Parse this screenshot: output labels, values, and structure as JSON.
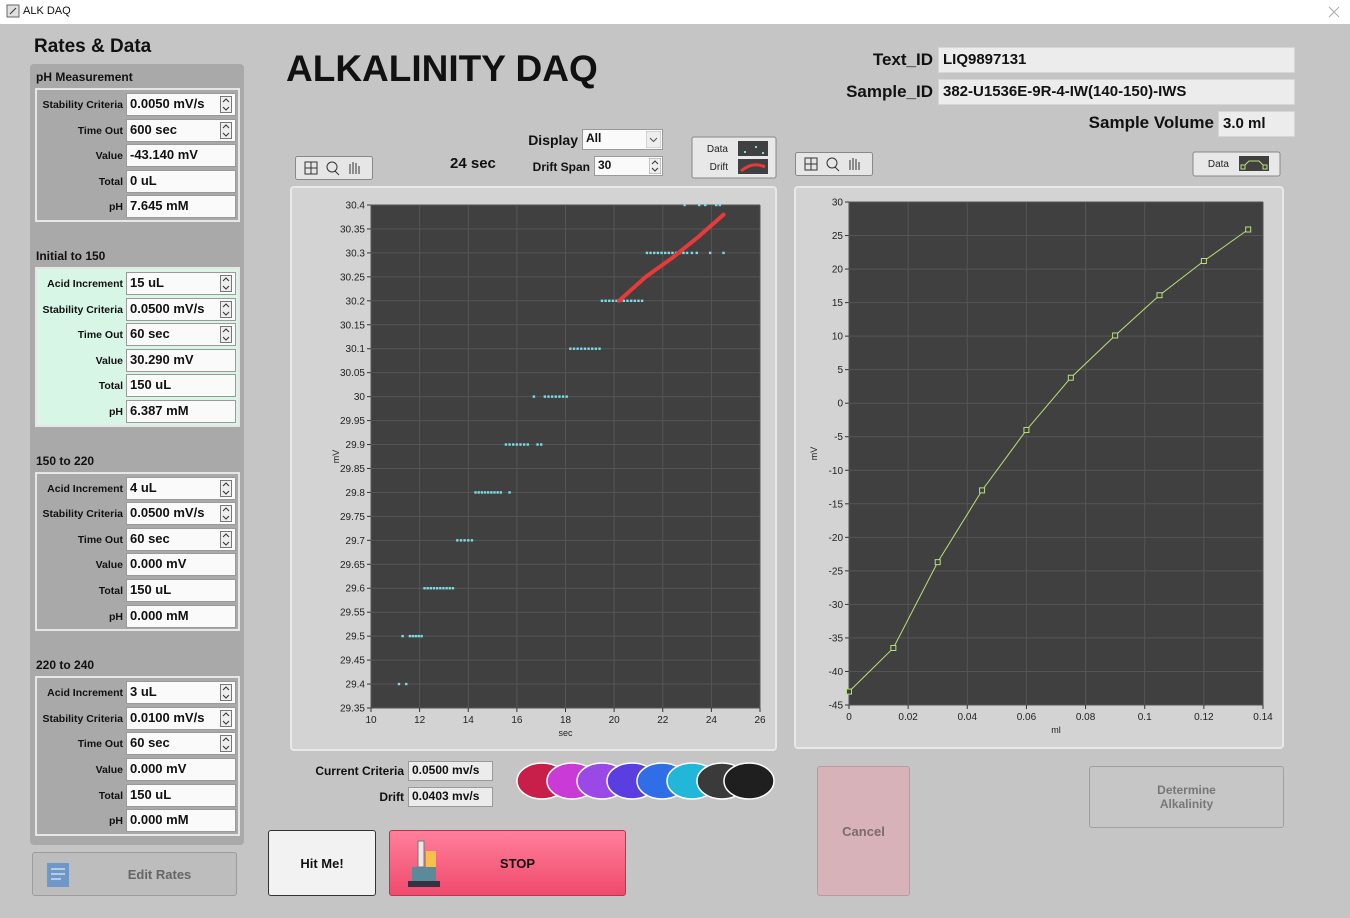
{
  "window": {
    "title": "ALK DAQ"
  },
  "sidebar": {
    "title": "Rates & Data",
    "sections": [
      {
        "title": "pH Measurement",
        "fields": [
          {
            "label": "Stability Criteria",
            "value": "0.0050 mV/s",
            "spinner": true
          },
          {
            "label": "Time Out",
            "value": "600 sec",
            "spinner": true
          },
          {
            "label": "Value",
            "value": "-43.140 mV",
            "spinner": false
          },
          {
            "label": "Total",
            "value": "0 uL",
            "spinner": false
          },
          {
            "label": "pH",
            "value": "7.645 mM",
            "spinner": false
          }
        ]
      },
      {
        "title": "Initial to 150",
        "highlight": true,
        "fields": [
          {
            "label": "Acid Increment",
            "value": "15 uL",
            "spinner": true
          },
          {
            "label": "Stability Criteria",
            "value": "0.0500 mV/s",
            "spinner": true
          },
          {
            "label": "Time Out",
            "value": "60 sec",
            "spinner": true
          },
          {
            "label": "Value",
            "value": "30.290 mV",
            "spinner": false
          },
          {
            "label": "Total",
            "value": "150 uL",
            "spinner": false
          },
          {
            "label": "pH",
            "value": "6.387 mM",
            "spinner": false
          }
        ]
      },
      {
        "title": "150 to 220",
        "fields": [
          {
            "label": "Acid Increment",
            "value": "4 uL",
            "spinner": true
          },
          {
            "label": "Stability Criteria",
            "value": "0.0500 mV/s",
            "spinner": true
          },
          {
            "label": "Time Out",
            "value": "60 sec",
            "spinner": true
          },
          {
            "label": "Value",
            "value": "0.000 mV",
            "spinner": false
          },
          {
            "label": "Total",
            "value": "150 uL",
            "spinner": false
          },
          {
            "label": "pH",
            "value": "0.000 mM",
            "spinner": false
          }
        ]
      },
      {
        "title": "220 to 240",
        "fields": [
          {
            "label": "Acid Increment",
            "value": "3 uL",
            "spinner": true
          },
          {
            "label": "Stability Criteria",
            "value": "0.0100 mV/s",
            "spinner": true
          },
          {
            "label": "Time Out",
            "value": "60 sec",
            "spinner": true
          },
          {
            "label": "Value",
            "value": "0.000 mV",
            "spinner": false
          },
          {
            "label": "Total",
            "value": "150 uL",
            "spinner": false
          },
          {
            "label": "pH",
            "value": "0.000 mM",
            "spinner": false
          }
        ]
      }
    ],
    "edit_button": "Edit Rates"
  },
  "header": {
    "title": "ALKALINITY DAQ",
    "elapsed": "24 sec",
    "display": {
      "label": "Display",
      "value": "All"
    },
    "drift_span": {
      "label": "Drift Span",
      "value": "30"
    }
  },
  "sample": {
    "text_id": {
      "label": "Text_ID",
      "value": "LIQ9897131"
    },
    "sample_id": {
      "label": "Sample_ID",
      "value": "382-U1536E-9R-4-IW(140-150)-IWS"
    },
    "volume": {
      "label": "Sample Volume",
      "value": "3.0 ml"
    }
  },
  "status": {
    "current_criteria": {
      "label": "Current Criteria",
      "value": "0.0500 mv/s"
    },
    "drift": {
      "label": "Drift",
      "value": "0.0403 mv/s"
    }
  },
  "buttons": {
    "hit": "Hit Me!",
    "stop": "STOP",
    "cancel": "Cancel",
    "determine": "Determine Alkalinity"
  },
  "chart_data": [
    {
      "type": "scatter",
      "xlabel": "sec",
      "ylabel": "mV",
      "xlim": [
        10,
        26
      ],
      "xticks": [
        10,
        12,
        14,
        16,
        18,
        20,
        22,
        24,
        26
      ],
      "ylim": [
        29.35,
        30.4
      ],
      "yticks": [
        29.35,
        29.4,
        29.45,
        29.5,
        29.55,
        29.6,
        29.65,
        29.7,
        29.75,
        29.8,
        29.85,
        29.9,
        29.95,
        30,
        30.05,
        30.1,
        30.15,
        30.2,
        30.25,
        30.3,
        30.35,
        30.4
      ],
      "grid": true,
      "series": [
        {
          "name": "Data",
          "color": "#7fdbe8",
          "mode": "markers",
          "x": [
            11.15,
            11.45,
            11.3,
            11.6,
            11.72,
            11.84,
            11.96,
            12.08,
            12.2,
            12.33,
            12.46,
            12.59,
            12.72,
            12.85,
            12.98,
            13.11,
            13.24,
            13.37,
            13.55,
            13.7,
            13.85,
            14.0,
            14.15,
            14.3,
            14.43,
            14.56,
            14.69,
            14.82,
            14.95,
            15.08,
            15.21,
            15.34,
            15.7,
            15.55,
            15.7,
            15.85,
            16.0,
            16.15,
            16.3,
            16.45,
            16.85,
            17.0,
            16.7,
            17.15,
            17.3,
            17.45,
            17.6,
            17.75,
            17.9,
            18.05,
            18.2,
            18.35,
            18.5,
            18.65,
            18.8,
            18.95,
            19.1,
            19.25,
            19.4,
            19.5,
            19.65,
            19.8,
            19.95,
            20.1,
            20.25,
            20.4,
            20.55,
            20.7,
            20.85,
            21.0,
            21.15,
            21.35,
            21.5,
            21.65,
            21.8,
            21.95,
            22.1,
            22.25,
            22.4,
            22.55,
            22.7,
            22.85,
            23.0,
            23.2,
            23.4,
            23.95,
            24.5,
            22.9,
            23.5,
            23.75,
            24.2,
            24.35
          ],
          "values": [
            29.4,
            29.4,
            29.5,
            29.5,
            29.5,
            29.5,
            29.5,
            29.5,
            29.6,
            29.6,
            29.6,
            29.6,
            29.6,
            29.6,
            29.6,
            29.6,
            29.6,
            29.6,
            29.7,
            29.7,
            29.7,
            29.7,
            29.7,
            29.8,
            29.8,
            29.8,
            29.8,
            29.8,
            29.8,
            29.8,
            29.8,
            29.8,
            29.8,
            29.9,
            29.9,
            29.9,
            29.9,
            29.9,
            29.9,
            29.9,
            29.9,
            29.9,
            30,
            30,
            30,
            30,
            30,
            30,
            30,
            30,
            30.1,
            30.1,
            30.1,
            30.1,
            30.1,
            30.1,
            30.1,
            30.1,
            30.1,
            30.2,
            30.2,
            30.2,
            30.2,
            30.2,
            30.2,
            30.2,
            30.2,
            30.2,
            30.2,
            30.2,
            30.2,
            30.3,
            30.3,
            30.3,
            30.3,
            30.3,
            30.3,
            30.3,
            30.3,
            30.3,
            30.3,
            30.3,
            30.3,
            30.3,
            30.3,
            30.3,
            30.3,
            30.4,
            30.4,
            30.4,
            30.4,
            30.4
          ]
        },
        {
          "name": "Drift",
          "color": "#e83a3a",
          "mode": "line",
          "x": [
            20.2,
            21.3,
            22.4,
            23.5,
            24.5
          ],
          "values": [
            30.2,
            30.25,
            30.29,
            30.335,
            30.38
          ]
        }
      ]
    },
    {
      "type": "line",
      "xlabel": "ml",
      "ylabel": "mV",
      "xlim": [
        0,
        0.14
      ],
      "xticks": [
        0,
        0.02,
        0.04,
        0.06,
        0.08,
        0.1,
        0.12,
        0.14
      ],
      "ylim": [
        -45,
        30
      ],
      "yticks": [
        -45,
        -40,
        -35,
        -30,
        -25,
        -20,
        -15,
        -10,
        -5,
        0,
        5,
        10,
        15,
        20,
        25,
        30
      ],
      "grid": true,
      "series": [
        {
          "name": "Data",
          "color": "#b9e07a",
          "mode": "line+markers",
          "x": [
            0,
            0.015,
            0.03,
            0.045,
            0.06,
            0.075,
            0.09,
            0.105,
            0.12,
            0.135
          ],
          "values": [
            -43,
            -36.5,
            -23.7,
            -13,
            -4,
            3.8,
            10.1,
            16.1,
            21.2,
            25.9
          ]
        }
      ]
    }
  ]
}
